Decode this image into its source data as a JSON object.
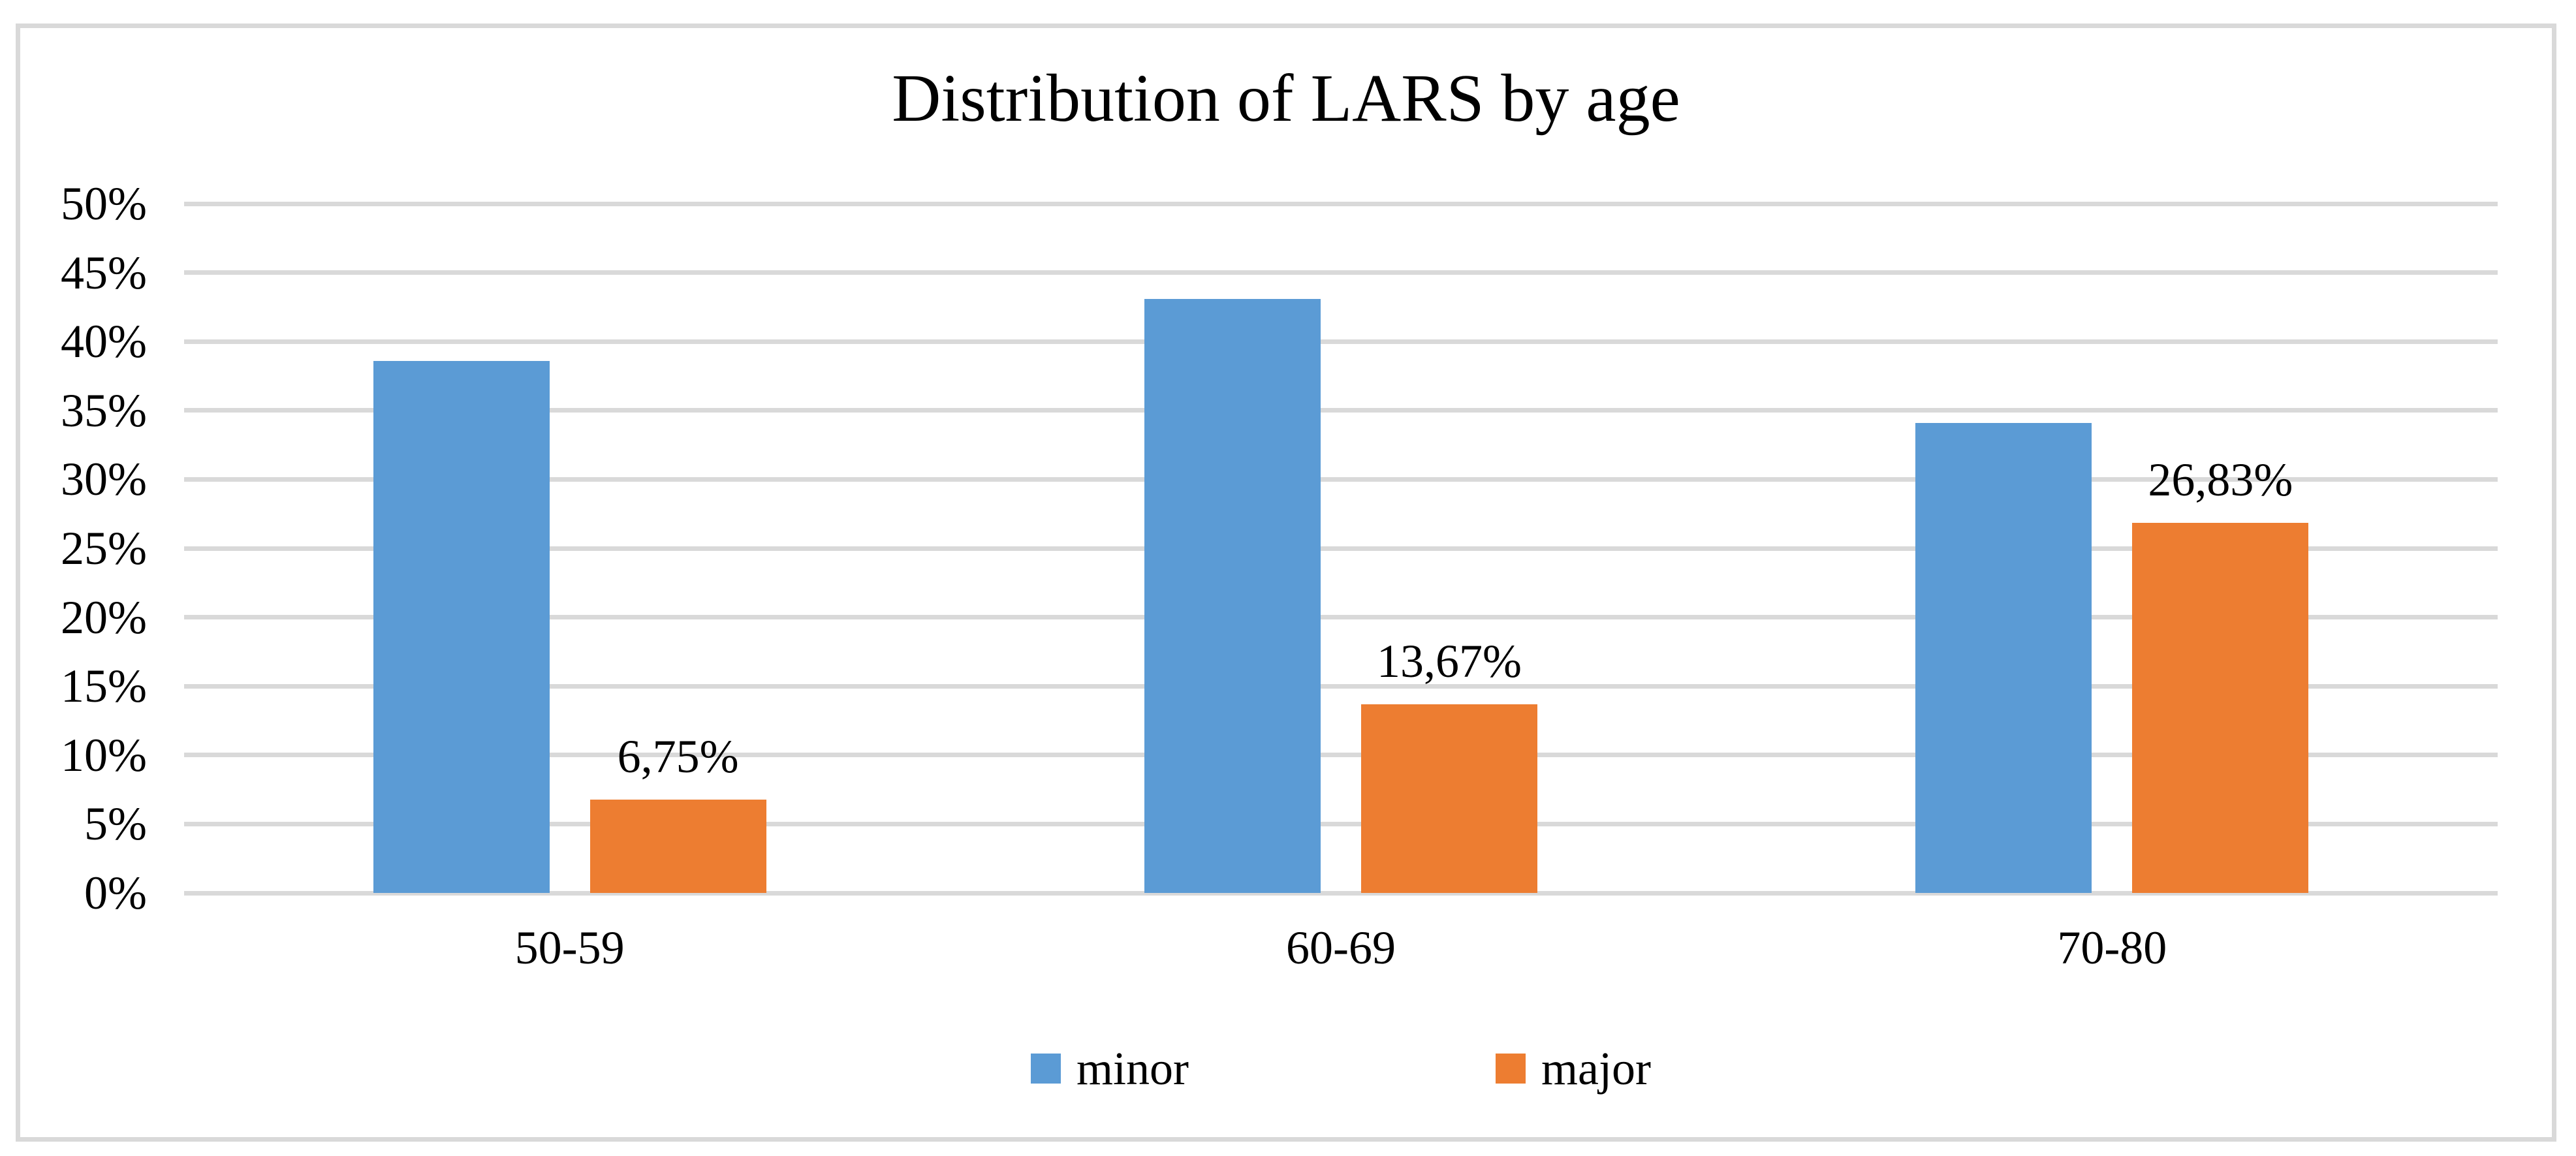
{
  "figure": {
    "background": "#FFFFFF",
    "frame_border_color": "#D9D9D9",
    "gridline_color": "#D9D9D9",
    "text_color": "#000000"
  },
  "chart_data": {
    "type": "bar",
    "title": "Distribution of LARS by age",
    "categories": [
      "50-59",
      "60-69",
      "70-80"
    ],
    "series": [
      {
        "name": "minor",
        "color": "#5B9BD5",
        "values": [
          38.6,
          43.1,
          34.1
        ],
        "labels": [
          "",
          "",
          ""
        ]
      },
      {
        "name": "major",
        "color": "#ED7D31",
        "values": [
          6.75,
          13.67,
          26.83
        ],
        "labels": [
          "6,75%",
          "13,67%",
          "26,83%"
        ]
      }
    ],
    "ylim": [
      0,
      50
    ],
    "y_tick_step": 5,
    "y_tick_labels": [
      "0%",
      "5%",
      "10%",
      "15%",
      "20%",
      "25%",
      "30%",
      "35%",
      "40%",
      "45%",
      "50%"
    ],
    "grid": true,
    "legend_position": "bottom",
    "decimal_separator": ","
  }
}
